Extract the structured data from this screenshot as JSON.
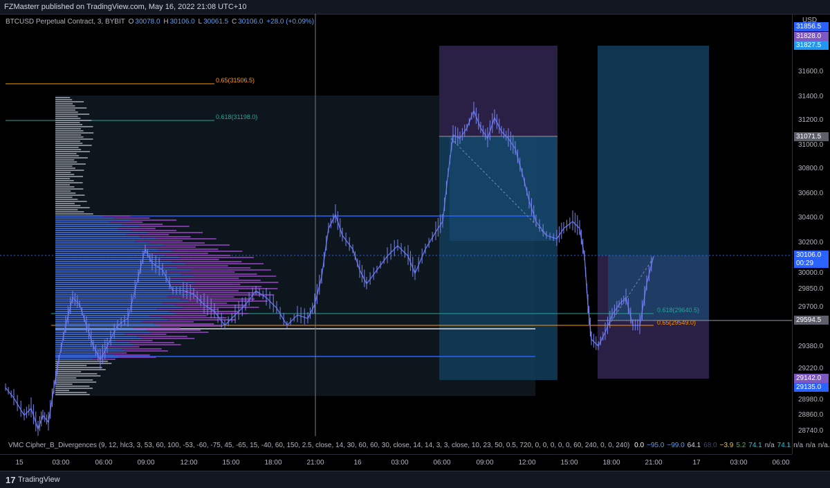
{
  "header": {
    "published": "FZMasterr published on TradingView.com, May 16, 2022 21:08 UTC+10"
  },
  "symbol": {
    "name": "BTCUSD Perpetual Contract, 3, BYBIT",
    "o_key": "O",
    "o_val": "30078.0",
    "h_key": "H",
    "h_val": "30106.0",
    "l_key": "L",
    "l_val": "30061.5",
    "c_key": "C",
    "c_val": "30106.0",
    "change": "+28.0 (+0.09%)"
  },
  "currency": "USD",
  "price_axis": {
    "labels": [
      "31600.0",
      "31400.0",
      "31200.0",
      "31000.0",
      "30800.0",
      "30600.0",
      "30400.0",
      "30200.0",
      "30000.0",
      "29850.0",
      "29700.0",
      "29380.0",
      "29220.0",
      "28980.0",
      "28860.0",
      "28740.0"
    ],
    "tags": {
      "top_a": "31856.5",
      "top_b": "31828.0",
      "top_c": "31827.5",
      "mid_gray": "31071.5",
      "current_price": "30106.0",
      "countdown": "00:29",
      "low_gray": "29594.5",
      "bottom_a": "29142.0",
      "bottom_b": "29135.0"
    }
  },
  "time_axis": {
    "labels": [
      "15",
      "03:00",
      "06:00",
      "09:00",
      "12:00",
      "15:00",
      "18:00",
      "21:00",
      "16",
      "03:00",
      "06:00",
      "09:00",
      "12:00",
      "15:00",
      "18:00",
      "21:00",
      "17",
      "03:00",
      "06:00"
    ]
  },
  "fib": {
    "left_065": "0.65(31506.5)",
    "left_0618": "0.618(31198.0)",
    "right_0618": "0.618(29640.5)",
    "right_065": "0.65(29549.0)"
  },
  "indicator": {
    "name": "VMC Cipher_B_Divergences (9, 12, hlc3, 3, 53, 60, 100, -53, -60, -75, 45, -65, 15, -40, 60, 150, 2.5, close, 14, 30, 60, 60, 30, close, 14, 14, 3, 3, close, 10, 23, 50, 0.5, 720, 0, 0, 0, 0, 0, 60, 240, 0, 0, 240)",
    "values": [
      {
        "text": "0.0",
        "color": "#ffffff"
      },
      {
        "text": "−95.0",
        "color": "#5b9cf6"
      },
      {
        "text": "−99.0",
        "color": "#5b9cf6"
      },
      {
        "text": "64.1",
        "color": "#d1d4dc"
      },
      {
        "text": "68.0",
        "color": "#3c4a6e"
      },
      {
        "text": "−3.9",
        "color": "#f0c43c"
      },
      {
        "text": "5.2",
        "color": "#4caf50"
      },
      {
        "text": "74.1",
        "color": "#26c6da"
      },
      {
        "text": "n/a",
        "color": "#b2b5be"
      },
      {
        "text": "74.1",
        "color": "#26c6da"
      },
      {
        "text": "n/a",
        "color": "#b2b5be"
      },
      {
        "text": "n/a",
        "color": "#b2b5be"
      },
      {
        "text": "n/a...",
        "color": "#b2b5be"
      }
    ]
  },
  "footer": {
    "logo": "17",
    "brand": "TradingView"
  },
  "colors": {
    "accent_blue": "#2962ff",
    "fib_orange": "#ff9800",
    "fib_teal": "#26a69a",
    "profile_purple": "#9c27b0",
    "candle": "#5b6ee8"
  }
}
